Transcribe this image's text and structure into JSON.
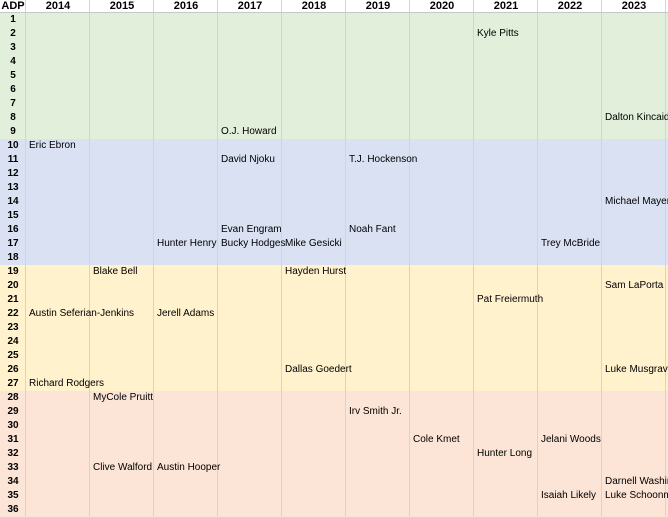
{
  "header": {
    "corner": "ADP",
    "years": [
      "2014",
      "2015",
      "2016",
      "2017",
      "2018",
      "2019",
      "2020",
      "2021",
      "2022",
      "2023"
    ]
  },
  "tiers": [
    {
      "first_row": 1,
      "last_row": 9,
      "color": "#e2efda"
    },
    {
      "first_row": 10,
      "last_row": 18,
      "color": "#d9e1f2"
    },
    {
      "first_row": 19,
      "last_row": 27,
      "color": "#fff2cc"
    },
    {
      "first_row": 28,
      "last_row": 36,
      "color": "#fce4d6"
    }
  ],
  "adp_rows": [
    1,
    2,
    3,
    4,
    5,
    6,
    7,
    8,
    9,
    10,
    11,
    12,
    13,
    14,
    15,
    16,
    17,
    18,
    19,
    20,
    21,
    22,
    23,
    24,
    25,
    26,
    27,
    28,
    29,
    30,
    31,
    32,
    33,
    34,
    35,
    36
  ],
  "players": [
    {
      "row": 2,
      "col": 7,
      "name": "Kyle Pitts"
    },
    {
      "row": 8,
      "col": 9,
      "name": "Dalton Kincaid"
    },
    {
      "row": 9,
      "col": 3,
      "name": "O.J. Howard"
    },
    {
      "row": 10,
      "col": 0,
      "name": "Eric Ebron"
    },
    {
      "row": 11,
      "col": 3,
      "name": "David Njoku"
    },
    {
      "row": 11,
      "col": 5,
      "name": "T.J. Hockenson"
    },
    {
      "row": 14,
      "col": 9,
      "name": "Michael Mayer"
    },
    {
      "row": 16,
      "col": 3,
      "name": "Evan Engram"
    },
    {
      "row": 16,
      "col": 5,
      "name": "Noah Fant"
    },
    {
      "row": 17,
      "col": 2,
      "name": "Hunter Henry"
    },
    {
      "row": 17,
      "col": 3,
      "name": "Bucky Hodges"
    },
    {
      "row": 17,
      "col": 4,
      "name": "Mike Gesicki"
    },
    {
      "row": 17,
      "col": 8,
      "name": "Trey McBride"
    },
    {
      "row": 19,
      "col": 1,
      "name": "Blake Bell"
    },
    {
      "row": 19,
      "col": 4,
      "name": "Hayden Hurst"
    },
    {
      "row": 20,
      "col": 9,
      "name": "Sam LaPorta"
    },
    {
      "row": 21,
      "col": 7,
      "name": "Pat Freiermuth"
    },
    {
      "row": 22,
      "col": 0,
      "name": "Austin Seferian-Jenkins"
    },
    {
      "row": 22,
      "col": 2,
      "name": "Jerell Adams"
    },
    {
      "row": 26,
      "col": 4,
      "name": "Dallas Goedert"
    },
    {
      "row": 26,
      "col": 9,
      "name": "Luke Musgrave"
    },
    {
      "row": 27,
      "col": 0,
      "name": "Richard Rodgers"
    },
    {
      "row": 28,
      "col": 1,
      "name": "MyCole Pruitt"
    },
    {
      "row": 29,
      "col": 5,
      "name": "Irv Smith Jr."
    },
    {
      "row": 31,
      "col": 6,
      "name": "Cole Kmet"
    },
    {
      "row": 31,
      "col": 8,
      "name": "Jelani Woods"
    },
    {
      "row": 32,
      "col": 7,
      "name": "Hunter Long"
    },
    {
      "row": 33,
      "col": 1,
      "name": "Clive Walford"
    },
    {
      "row": 33,
      "col": 2,
      "name": "Austin Hooper"
    },
    {
      "row": 34,
      "col": 9,
      "name": "Darnell Washington"
    },
    {
      "row": 35,
      "col": 8,
      "name": "Isaiah Likely"
    },
    {
      "row": 35,
      "col": 9,
      "name": "Luke Schoonmaker"
    }
  ]
}
